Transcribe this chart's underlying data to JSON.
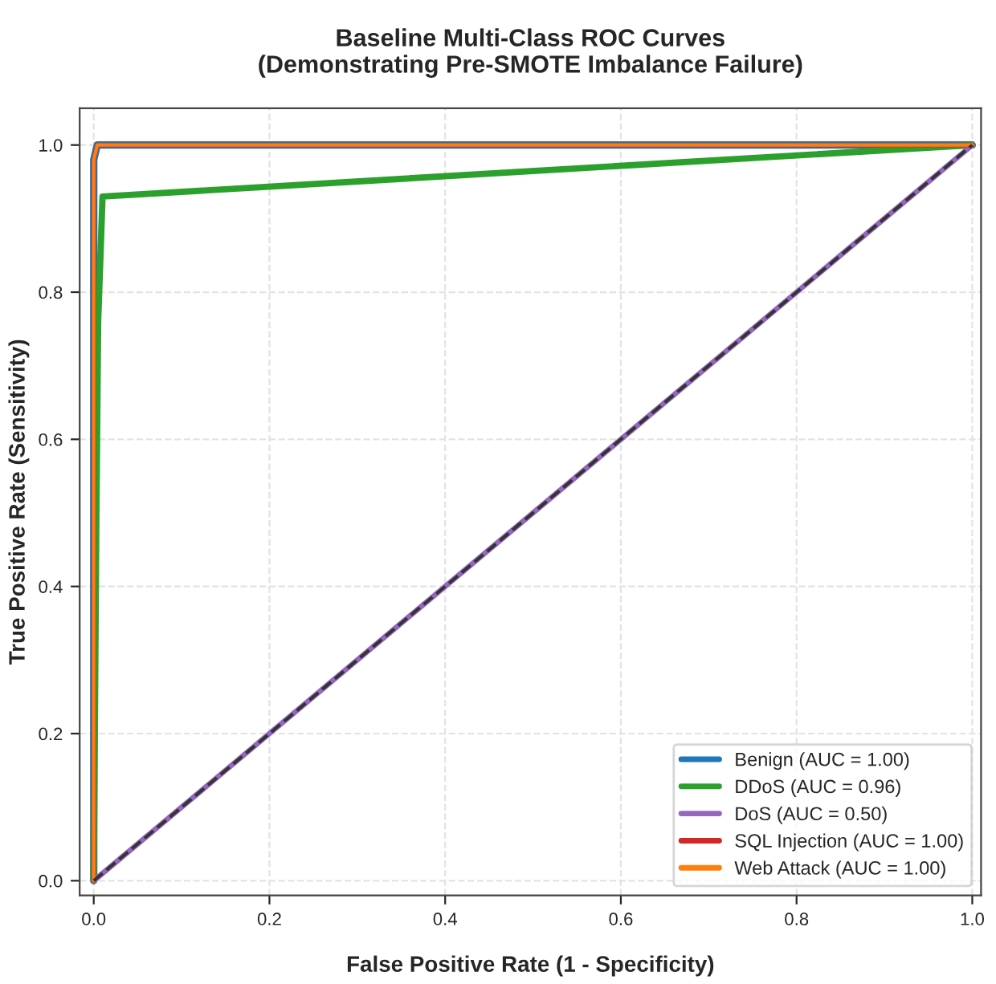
{
  "chart_data": {
    "type": "line",
    "title": "Baseline Multi-Class ROC Curves\n(Demonstrating Pre-SMOTE Imbalance Failure)",
    "xlabel": "False Positive Rate (1 - Specificity)",
    "ylabel": "True Positive Rate (Sensitivity)",
    "xlim": [
      -0.016,
      1.01
    ],
    "ylim": [
      -0.02,
      1.05
    ],
    "xticks": [
      {
        "value": 0,
        "label": "0.0"
      },
      0.2,
      0.4,
      0.6,
      0.8,
      {
        "value": 1.0,
        "label": "1.0"
      }
    ],
    "yticks": [
      {
        "value": 0,
        "label": "0.0"
      },
      0.2,
      0.4,
      0.6,
      0.8,
      {
        "value": 1.0,
        "label": "1.0"
      }
    ],
    "grid": true,
    "legend": "bottom right",
    "line_style": "solid",
    "marker": "none",
    "series": [
      {
        "name": "Benign (AUC = 1.00)",
        "color": "#1f77b4",
        "x": [
          0,
          0,
          0.004,
          1
        ],
        "values": [
          0,
          0.98,
          1,
          1
        ]
      },
      {
        "name": "DDoS (AUC = 0.96)",
        "color": "#2ca02c",
        "x": [
          0,
          0.003,
          0.005,
          0.01,
          1
        ],
        "values": [
          0,
          0.5,
          0.76,
          0.93,
          1
        ]
      },
      {
        "name": "DoS (AUC = 0.50)",
        "color": "#9467bd",
        "x": [
          0,
          1
        ],
        "values": [
          0,
          1
        ]
      },
      {
        "name": "SQL Injection (AUC = 1.00)",
        "color": "#d62728",
        "x": [
          0,
          0,
          0.004,
          1
        ],
        "values": [
          0,
          0.98,
          1,
          1
        ]
      },
      {
        "name": "Web Attack (AUC = 1.00)",
        "color": "#ff7f0e",
        "x": [
          0,
          0,
          0.004,
          1
        ],
        "values": [
          0,
          0.98,
          1,
          1
        ]
      },
      {
        "color": "#333333",
        "x": [
          0,
          1
        ],
        "values": [
          0,
          1
        ],
        "line_style": "dashed"
      }
    ]
  }
}
